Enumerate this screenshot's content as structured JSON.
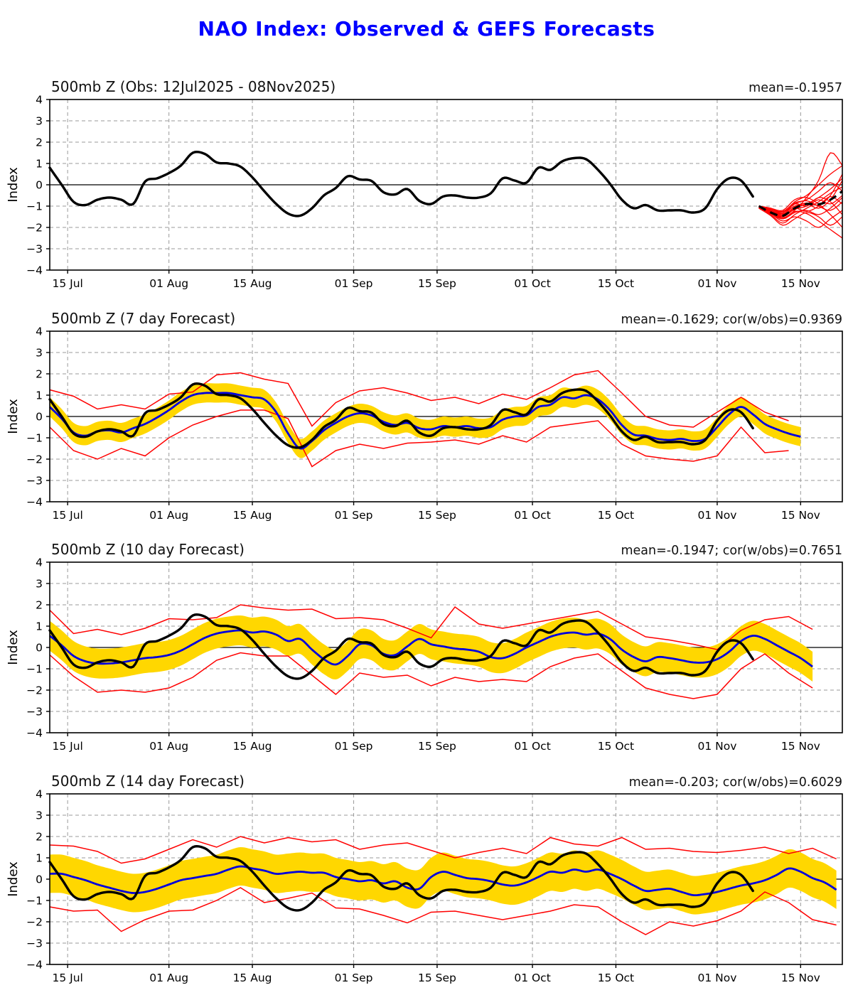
{
  "chart_data": {
    "type": "line",
    "title": "NAO Index: Observed & GEFS Forecasts",
    "colors": {
      "title": "#0000ff",
      "observed_line": "#000000",
      "forecast_mean_line": "#0000dd",
      "ensemble_envelope_line": "#ff0000",
      "spread_band_fill": "#ffd700",
      "grid": "#999999"
    },
    "y_axis": {
      "label": "Index",
      "min": -4,
      "max": 4,
      "tick_values": [
        4,
        3,
        2,
        1,
        0,
        -1,
        -2,
        -3,
        -4
      ],
      "tick_labels": [
        "4",
        "3",
        "2",
        "1",
        "0",
        "−1",
        "−2",
        "−3",
        "−4"
      ]
    },
    "x_axis": {
      "start_date": "12Jul2025",
      "end_date": "22Nov2025",
      "total_days": 133,
      "tick_days": [
        3,
        20,
        34,
        51,
        65,
        81,
        95,
        112,
        126
      ],
      "tick_labels": [
        "15 Jul",
        "01 Aug",
        "15 Aug",
        "01 Sep",
        "15 Sep",
        "01 Oct",
        "15 Oct",
        "01 Nov",
        "15 Nov"
      ]
    },
    "observed": {
      "name": "Observed NAO index (12Jul2025 - 08Nov2025)",
      "color": "#000000",
      "start_day": 0,
      "step_days": 2,
      "values": [
        0.8,
        0.0,
        -0.8,
        -0.95,
        -0.7,
        -0.6,
        -0.7,
        -0.9,
        0.15,
        0.3,
        0.55,
        0.9,
        1.5,
        1.45,
        1.05,
        1.0,
        0.85,
        0.35,
        -0.3,
        -0.9,
        -1.35,
        -1.45,
        -1.1,
        -0.5,
        -0.15,
        0.4,
        0.25,
        0.18,
        -0.35,
        -0.45,
        -0.2,
        -0.75,
        -0.9,
        -0.55,
        -0.5,
        -0.6,
        -0.6,
        -0.4,
        0.3,
        0.2,
        0.1,
        0.8,
        0.7,
        1.1,
        1.25,
        1.2,
        0.7,
        0.05,
        -0.7,
        -1.1,
        -0.95,
        -1.2,
        -1.2,
        -1.2,
        -1.3,
        -1.1,
        -0.2,
        0.3,
        0.2,
        -0.55
      ]
    },
    "panels": [
      {
        "title": "500mb Z (Obs: 12Jul2025 - 08Nov2025)",
        "annotation": "mean=-0.1957",
        "ensemble_mean": {
          "name": "GEFS ensemble mean (dashed)",
          "style": "dashed",
          "color": "#000000",
          "start_day": 119,
          "step_days": 2,
          "values": [
            -1.0,
            -1.3,
            -1.45,
            -1.1,
            -0.9,
            -0.92,
            -0.7,
            -0.3
          ]
        },
        "ensemble_members": {
          "name": "GEFS ensemble members",
          "color": "#ff0000",
          "start_day": 119,
          "step_days": 2,
          "series": [
            [
              -1.0,
              -1.25,
              -1.5,
              -1.1,
              -0.9,
              -0.6,
              -0.2,
              0.3
            ],
            [
              -1.05,
              -1.3,
              -1.6,
              -1.3,
              -1.2,
              -1.4,
              -1.1,
              -0.6
            ],
            [
              -1.0,
              -1.15,
              -1.3,
              -0.8,
              -0.5,
              0.0,
              0.5,
              0.9
            ],
            [
              -1.05,
              -1.35,
              -1.7,
              -1.5,
              -1.7,
              -2.0,
              -1.6,
              -1.2
            ],
            [
              -1.0,
              -1.2,
              -1.4,
              -0.9,
              -1.0,
              -0.7,
              -0.9,
              -0.5
            ],
            [
              -1.0,
              -1.1,
              -1.2,
              -0.7,
              -0.6,
              -0.9,
              -1.4,
              -2.0
            ],
            [
              -1.05,
              -1.3,
              -1.55,
              -1.2,
              -0.6,
              0.2,
              1.5,
              0.9
            ],
            [
              -1.1,
              -1.4,
              -1.8,
              -1.4,
              -1.1,
              -0.8,
              -0.4,
              -0.1
            ],
            [
              -1.0,
              -1.2,
              -1.35,
              -1.0,
              -0.9,
              -1.1,
              -0.7,
              0.2
            ],
            [
              -1.05,
              -1.25,
              -1.45,
              -1.05,
              -0.85,
              -0.95,
              -0.55,
              -0.9
            ],
            [
              -1.1,
              -1.35,
              -1.6,
              -1.25,
              -1.35,
              -1.7,
              -2.1,
              -2.5
            ],
            [
              -1.0,
              -1.15,
              -1.25,
              -0.85,
              -0.7,
              -0.3,
              0.1,
              -0.3
            ],
            [
              -1.05,
              -1.3,
              -1.5,
              -1.15,
              -1.0,
              -0.6,
              -0.8,
              -1.4
            ],
            [
              -1.0,
              -1.1,
              -1.3,
              -0.9,
              -0.75,
              -1.0,
              -1.2,
              -0.8
            ],
            [
              -1.05,
              -1.2,
              -1.4,
              -1.1,
              -1.25,
              -1.0,
              -0.5,
              0.5
            ],
            [
              -1.1,
              -1.45,
              -1.9,
              -1.6,
              -1.3,
              -1.5,
              -1.9,
              -1.5
            ]
          ]
        }
      },
      {
        "title": "500mb Z (7 day Forecast)",
        "annotation": "mean=-0.1629; cor(w/obs)=0.9369",
        "band_halfwidth": 0.45,
        "forecast_mean": {
          "color": "#0000dd",
          "start_day": 0,
          "step_days": 2,
          "values": [
            0.45,
            -0.1,
            -0.75,
            -0.9,
            -0.7,
            -0.65,
            -0.75,
            -0.55,
            -0.35,
            -0.05,
            0.3,
            0.7,
            1.0,
            1.1,
            1.1,
            1.1,
            1.0,
            0.9,
            0.8,
            0.2,
            -0.8,
            -1.5,
            -1.15,
            -0.65,
            -0.3,
            0.0,
            0.15,
            0.05,
            -0.25,
            -0.4,
            -0.3,
            -0.55,
            -0.6,
            -0.45,
            -0.5,
            -0.45,
            -0.55,
            -0.5,
            -0.15,
            0.0,
            0.05,
            0.45,
            0.55,
            0.9,
            0.85,
            1.0,
            0.8,
            0.3,
            -0.4,
            -0.85,
            -0.9,
            -1.05,
            -1.1,
            -1.05,
            -1.15,
            -1.05,
            -0.5,
            0.1,
            0.45,
            0.1,
            -0.35,
            -0.6,
            -0.8,
            -0.95
          ]
        },
        "envelope_upper": {
          "color": "#ff0000",
          "start_day": 0,
          "step_days": 4,
          "values": [
            1.25,
            0.95,
            0.35,
            0.55,
            0.35,
            1.05,
            1.15,
            1.95,
            2.05,
            1.75,
            1.55,
            -0.45,
            0.65,
            1.2,
            1.35,
            1.1,
            0.75,
            0.9,
            0.6,
            1.05,
            0.8,
            1.35,
            1.95,
            2.15,
            1.1,
            0.0,
            -0.4,
            -0.5,
            0.2,
            0.9,
            0.2,
            -0.2
          ]
        },
        "envelope_lower": {
          "color": "#ff0000",
          "start_day": 0,
          "step_days": 4,
          "values": [
            -0.5,
            -1.6,
            -2.0,
            -1.5,
            -1.85,
            -1.0,
            -0.4,
            0.0,
            0.3,
            0.3,
            -0.1,
            -2.35,
            -1.6,
            -1.3,
            -1.5,
            -1.25,
            -1.2,
            -1.1,
            -1.3,
            -0.9,
            -1.2,
            -0.5,
            -0.35,
            -0.2,
            -1.3,
            -1.85,
            -2.0,
            -2.1,
            -1.85,
            -0.5,
            -1.7,
            -1.6
          ]
        }
      },
      {
        "title": "500mb Z (10 day Forecast)",
        "annotation": "mean=-0.1947; cor(w/obs)=0.7651",
        "band_halfwidth": 0.7,
        "forecast_mean": {
          "color": "#0000dd",
          "start_day": 0,
          "step_days": 2,
          "values": [
            0.55,
            0.1,
            -0.4,
            -0.65,
            -0.75,
            -0.75,
            -0.7,
            -0.6,
            -0.5,
            -0.45,
            -0.35,
            -0.15,
            0.15,
            0.45,
            0.65,
            0.75,
            0.8,
            0.7,
            0.75,
            0.6,
            0.3,
            0.4,
            -0.1,
            -0.55,
            -0.8,
            -0.4,
            0.15,
            0.1,
            -0.3,
            -0.35,
            0.05,
            0.4,
            0.15,
            0.05,
            -0.05,
            -0.1,
            -0.2,
            -0.45,
            -0.5,
            -0.3,
            0.0,
            0.25,
            0.5,
            0.65,
            0.7,
            0.6,
            0.65,
            0.4,
            -0.1,
            -0.45,
            -0.65,
            -0.45,
            -0.5,
            -0.6,
            -0.7,
            -0.7,
            -0.55,
            -0.2,
            0.3,
            0.55,
            0.4,
            0.1,
            -0.2,
            -0.5,
            -0.9
          ]
        },
        "envelope_upper": {
          "color": "#ff0000",
          "start_day": 0,
          "step_days": 4,
          "values": [
            1.75,
            0.65,
            0.85,
            0.6,
            0.9,
            1.35,
            1.3,
            1.4,
            2.0,
            1.85,
            1.75,
            1.8,
            1.35,
            1.4,
            1.3,
            0.9,
            0.45,
            1.9,
            1.1,
            0.9,
            1.1,
            1.3,
            1.5,
            1.7,
            1.1,
            0.5,
            0.35,
            0.15,
            -0.1,
            0.8,
            1.3,
            1.45,
            0.85
          ]
        },
        "envelope_lower": {
          "color": "#ff0000",
          "start_day": 0,
          "step_days": 4,
          "values": [
            -0.35,
            -1.35,
            -2.1,
            -2.0,
            -2.1,
            -1.9,
            -1.4,
            -0.6,
            -0.25,
            -0.4,
            -0.4,
            -1.3,
            -2.2,
            -1.2,
            -1.4,
            -1.3,
            -1.8,
            -1.4,
            -1.6,
            -1.5,
            -1.6,
            -0.9,
            -0.5,
            -0.3,
            -1.1,
            -1.9,
            -2.2,
            -2.4,
            -2.2,
            -1.0,
            -0.3,
            -1.2,
            -1.9
          ]
        }
      },
      {
        "title": "500mb Z (14 day Forecast)",
        "annotation": "mean=-0.203; cor(w/obs)=0.6029",
        "band_halfwidth": 0.9,
        "forecast_mean": {
          "color": "#0000dd",
          "start_day": 0,
          "step_days": 2,
          "values": [
            0.25,
            0.25,
            0.1,
            -0.05,
            -0.25,
            -0.4,
            -0.55,
            -0.65,
            -0.6,
            -0.45,
            -0.25,
            -0.05,
            0.05,
            0.15,
            0.25,
            0.45,
            0.6,
            0.5,
            0.4,
            0.25,
            0.3,
            0.35,
            0.3,
            0.3,
            0.1,
            0.0,
            -0.1,
            -0.05,
            -0.2,
            -0.1,
            -0.4,
            -0.45,
            0.1,
            0.35,
            0.2,
            0.05,
            0.0,
            -0.1,
            -0.25,
            -0.3,
            -0.15,
            0.1,
            0.35,
            0.3,
            0.45,
            0.35,
            0.45,
            0.25,
            0.0,
            -0.3,
            -0.55,
            -0.5,
            -0.45,
            -0.6,
            -0.75,
            -0.7,
            -0.6,
            -0.45,
            -0.3,
            -0.2,
            -0.05,
            0.2,
            0.5,
            0.35,
            0.05,
            -0.15,
            -0.5
          ]
        },
        "envelope_upper": {
          "color": "#ff0000",
          "start_day": 0,
          "step_days": 4,
          "values": [
            1.6,
            1.55,
            1.3,
            0.75,
            0.95,
            1.4,
            1.85,
            1.5,
            2.0,
            1.7,
            1.95,
            1.75,
            1.85,
            1.4,
            1.6,
            1.7,
            1.35,
            1.0,
            1.25,
            1.45,
            1.2,
            1.95,
            1.65,
            1.55,
            1.95,
            1.4,
            1.45,
            1.3,
            1.25,
            1.35,
            1.5,
            1.2,
            1.45,
            0.95
          ]
        },
        "envelope_lower": {
          "color": "#ff0000",
          "start_day": 0,
          "step_days": 4,
          "values": [
            -1.3,
            -1.5,
            -1.45,
            -2.45,
            -1.9,
            -1.5,
            -1.45,
            -1.0,
            -0.4,
            -1.1,
            -0.9,
            -0.65,
            -1.35,
            -1.4,
            -1.7,
            -2.05,
            -1.55,
            -1.5,
            -1.7,
            -1.9,
            -1.7,
            -1.5,
            -1.2,
            -1.3,
            -2.0,
            -2.6,
            -2.0,
            -2.2,
            -1.95,
            -1.5,
            -0.6,
            -1.1,
            -1.9,
            -2.15
          ]
        }
      }
    ]
  }
}
